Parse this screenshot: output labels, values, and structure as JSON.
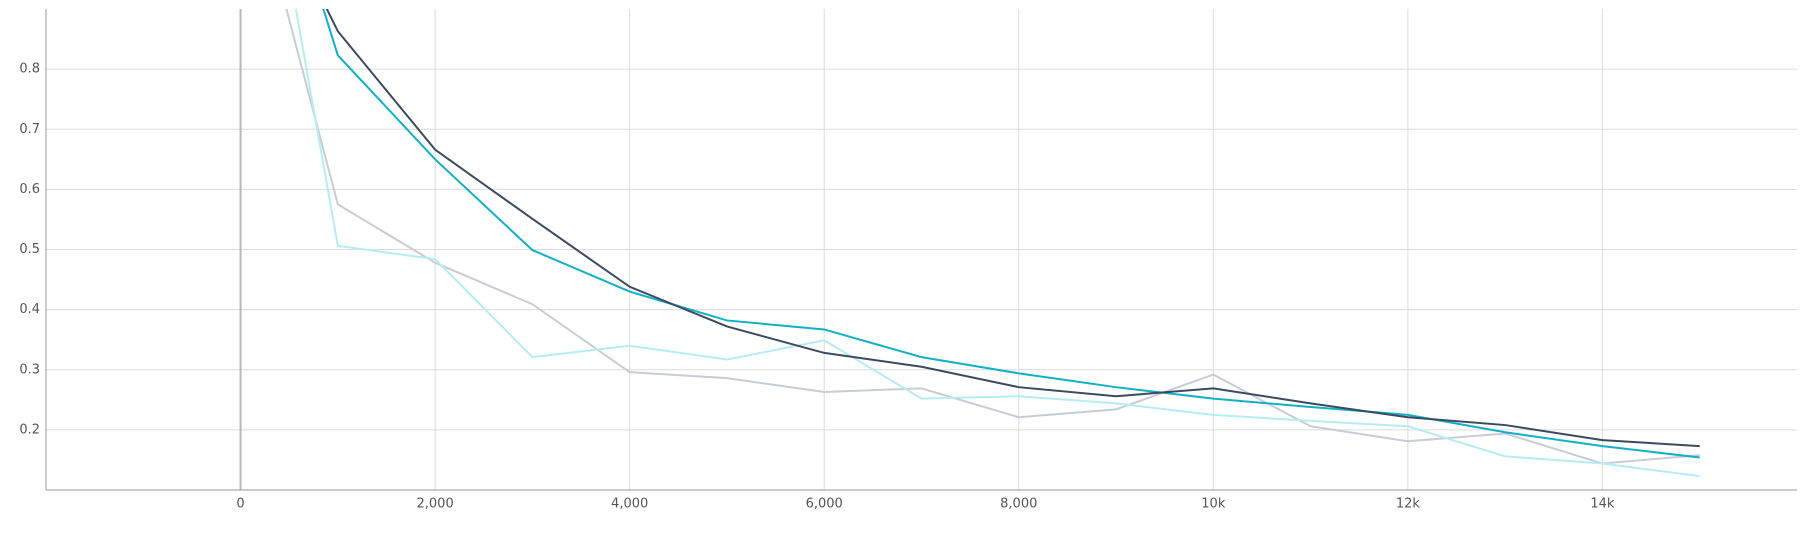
{
  "chart_data": {
    "type": "line",
    "x": [
      0,
      1000,
      2000,
      3000,
      4000,
      5000,
      6000,
      7000,
      8000,
      9000,
      10000,
      11000,
      12000,
      13000,
      14000,
      15000
    ],
    "series": [
      {
        "color": "#c8ccd6",
        "values": [
          1.19,
          0.575,
          0.478,
          0.409,
          0.296,
          0.286,
          0.263,
          0.269,
          0.221,
          0.234,
          0.292,
          0.206,
          0.181,
          0.194,
          0.144,
          0.158
        ]
      },
      {
        "color": "#b6ecf3",
        "values": [
          1.42,
          0.506,
          0.484,
          0.321,
          0.34,
          0.317,
          0.349,
          0.252,
          0.256,
          0.244,
          0.225,
          0.215,
          0.206,
          0.156,
          0.144,
          0.123
        ]
      },
      {
        "color": "#12b0c6",
        "values": [
          1.34,
          0.823,
          0.65,
          0.499,
          0.43,
          0.382,
          0.367,
          0.321,
          0.294,
          0.271,
          0.252,
          0.238,
          0.225,
          0.196,
          0.173,
          0.154
        ]
      },
      {
        "color": "#3b4a60",
        "values": [
          1.19,
          0.863,
          0.666,
          0.551,
          0.438,
          0.372,
          0.328,
          0.305,
          0.271,
          0.256,
          0.269,
          0.244,
          0.221,
          0.208,
          0.183,
          0.173
        ]
      }
    ],
    "xlim": [
      -2000,
      16000
    ],
    "xticks": [
      0,
      {
        "value": 2000,
        "label": "2,000"
      },
      {
        "value": 4000,
        "label": "4,000"
      },
      {
        "value": 6000,
        "label": "6,000"
      },
      {
        "value": 8000,
        "label": "8,000"
      },
      {
        "value": 10000,
        "label": "10k"
      },
      {
        "value": 12000,
        "label": "12k"
      },
      {
        "value": 14000,
        "label": "14k"
      }
    ],
    "ylim": [
      0.1,
      0.9
    ],
    "yticks": [
      0.2,
      0.3,
      0.4,
      0.5,
      0.6,
      0.7,
      0.8
    ],
    "grid": true
  }
}
